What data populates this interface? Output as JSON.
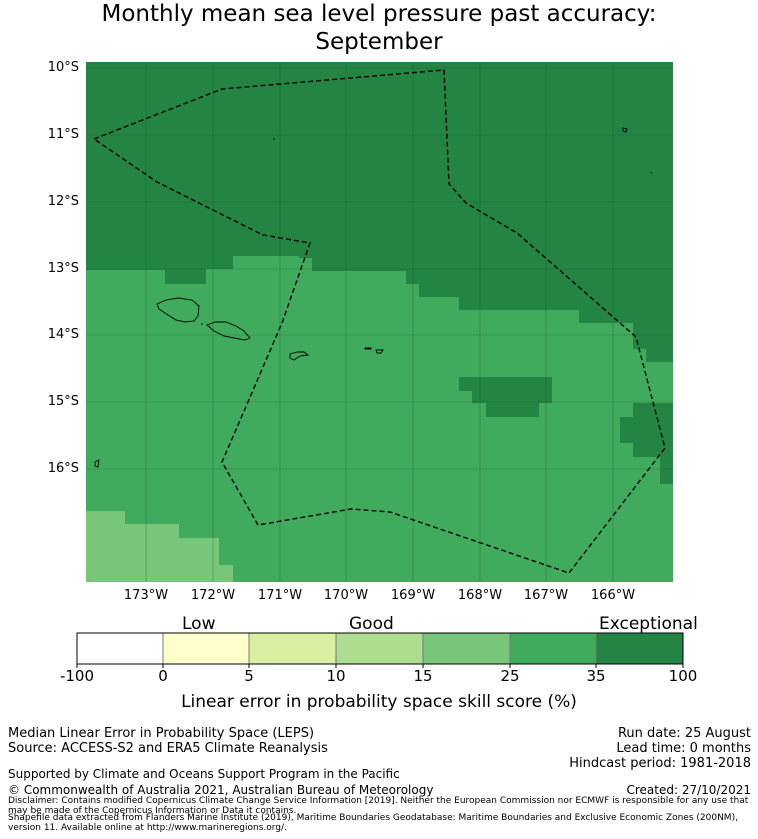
{
  "title": {
    "line1": "Monthly mean sea level pressure past accuracy:",
    "line2": "September"
  },
  "map": {
    "lat_labels": [
      "10°S",
      "11°S",
      "12°S",
      "13°S",
      "14°S",
      "15°S",
      "16°S"
    ],
    "lon_labels": [
      "173°W",
      "172°W",
      "171°W",
      "170°W",
      "169°W",
      "168°W",
      "167°W",
      "166°W"
    ],
    "colors": {
      "exceptional": "#238443",
      "good_high": "#41ab5d",
      "good": "#78c679",
      "coast": "#000000",
      "eez_boundary": "#000000"
    },
    "grid": "on"
  },
  "colorbar": {
    "category_labels": [
      "Low",
      "Good",
      "Exceptional"
    ],
    "tick_labels": [
      "-100",
      "0",
      "5",
      "10",
      "15",
      "25",
      "35",
      "100"
    ],
    "bins": [
      {
        "from": -100,
        "to": 0,
        "color": "#ffffff"
      },
      {
        "from": 0,
        "to": 5,
        "color": "#ffffcc"
      },
      {
        "from": 5,
        "to": 10,
        "color": "#d9f0a3"
      },
      {
        "from": 10,
        "to": 15,
        "color": "#addd8e"
      },
      {
        "from": 15,
        "to": 25,
        "color": "#78c679"
      },
      {
        "from": 25,
        "to": 35,
        "color": "#41ab5d"
      },
      {
        "from": 35,
        "to": 100,
        "color": "#238443"
      }
    ],
    "axis_label": "Linear error in probability space skill score (%)"
  },
  "footer": {
    "method": "Median Linear Error in Probability Space (LEPS)",
    "source": "Source: ACCESS-S2 and ERA5 Climate Reanalysis",
    "run_date": "Run date: 25 August",
    "lead_time": "Lead time: 0 months",
    "hindcast": "Hindcast period: 1981-2018",
    "support": "Supported by Climate and Oceans Support Program in the Pacific",
    "copyright": "© Commonwealth of Australia 2021, Australian Bureau of Meteorology",
    "created": "Created: 27/10/2021",
    "disclaimer_1": "Disclaimer: Contains modified Copernicus Climate Change Service Information [2019]. Neither the European Commission nor ECMWF is responsible for any use that may be made of the Copernicus Information or Data it contains.",
    "disclaimer_2": "Shapefile data extracted from Flanders Marine Institute (2019), Maritime Boundaries Geodatabase: Maritime Boundaries and Exclusive Economic Zones (200NM), version 11. Available online at http://www.marineregions.org/."
  }
}
